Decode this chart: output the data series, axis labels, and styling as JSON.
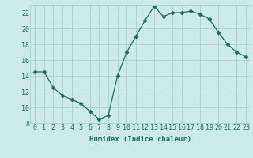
{
  "x": [
    0,
    1,
    2,
    3,
    4,
    5,
    6,
    7,
    8,
    9,
    10,
    11,
    12,
    13,
    14,
    15,
    16,
    17,
    18,
    19,
    20,
    21,
    22,
    23
  ],
  "y": [
    14.5,
    14.5,
    12.5,
    11.5,
    11.0,
    10.5,
    9.5,
    8.5,
    9.0,
    14.0,
    17.0,
    19.0,
    21.0,
    22.8,
    21.5,
    22.0,
    22.0,
    22.2,
    21.8,
    21.2,
    19.5,
    18.0,
    17.0,
    16.4
  ],
  "xlabel": "Humidex (Indice chaleur)",
  "xlim": [
    -0.5,
    23.5
  ],
  "ylim": [
    8,
    23
  ],
  "yticks": [
    8,
    10,
    12,
    14,
    16,
    18,
    20,
    22
  ],
  "xticks": [
    0,
    1,
    2,
    3,
    4,
    5,
    6,
    7,
    8,
    9,
    10,
    11,
    12,
    13,
    14,
    15,
    16,
    17,
    18,
    19,
    20,
    21,
    22,
    23
  ],
  "xtick_labels": [
    "0",
    "1",
    "2",
    "3",
    "4",
    "5",
    "6",
    "7",
    "8",
    "9",
    "10",
    "11",
    "12",
    "13",
    "14",
    "15",
    "16",
    "17",
    "18",
    "19",
    "20",
    "21",
    "22",
    "23"
  ],
  "line_color": "#1a6b5a",
  "marker": "D",
  "marker_size": 2.5,
  "bg_color": "#cceaea",
  "grid_color": "#aacfcf",
  "label_fontsize": 6.5,
  "tick_fontsize": 6.0
}
